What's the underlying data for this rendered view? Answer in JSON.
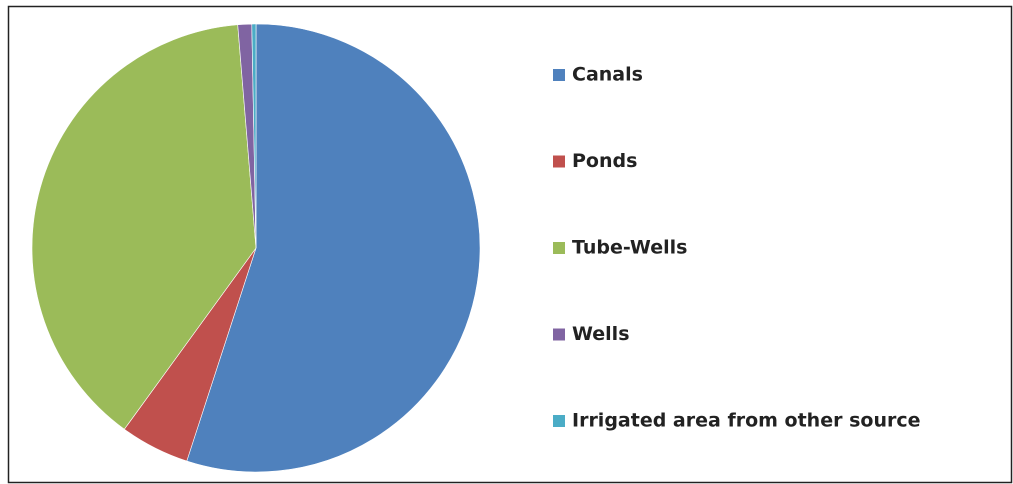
{
  "chart_data": {
    "type": "pie",
    "categories": [
      "Canals",
      "Ponds",
      "Tube-Wells",
      "Wells",
      "Irrigated area from other source"
    ],
    "values": [
      55,
      5,
      38.7,
      1,
      0.3
    ],
    "colors": [
      "#4f81bd",
      "#c0504d",
      "#9bbb59",
      "#8064a2",
      "#4bacc6"
    ],
    "legend": "right"
  }
}
